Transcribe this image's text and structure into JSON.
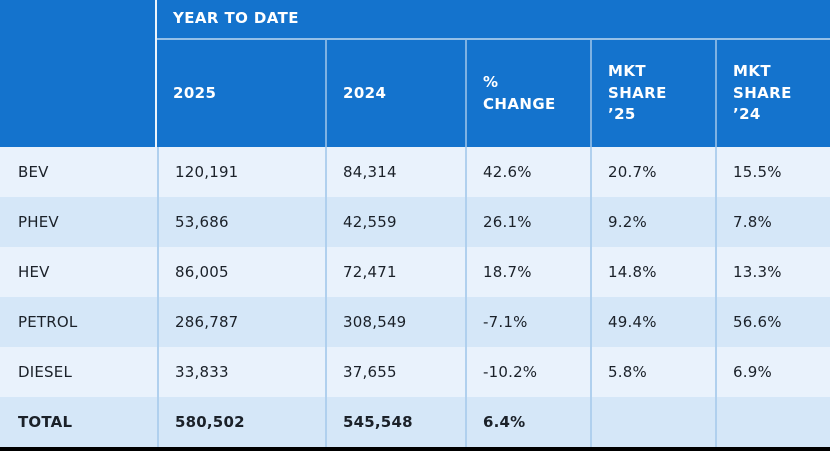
{
  "table": {
    "group_header": "YEAR TO DATE",
    "columns": {
      "label": "",
      "y2025": "2025",
      "y2024": "2024",
      "change": "% CHANGE",
      "share25": "MKT SHARE ’25",
      "share24": "MKT SHARE ’24"
    },
    "rows": [
      {
        "label": "BEV",
        "y2025": "120,191",
        "y2024": "84,314",
        "change": "42.6%",
        "share25": "20.7%",
        "share24": "15.5%"
      },
      {
        "label": "PHEV",
        "y2025": "53,686",
        "y2024": "42,559",
        "change": "26.1%",
        "share25": "9.2%",
        "share24": "7.8%"
      },
      {
        "label": "HEV",
        "y2025": "86,005",
        "y2024": "72,471",
        "change": "18.7%",
        "share25": "14.8%",
        "share24": "13.3%"
      },
      {
        "label": "PETROL",
        "y2025": "286,787",
        "y2024": "308,549",
        "change": "-7.1%",
        "share25": "49.4%",
        "share24": "56.6%"
      },
      {
        "label": "DIESEL",
        "y2025": "33,833",
        "y2024": "37,655",
        "change": "-10.2%",
        "share25": "5.8%",
        "share24": "6.9%"
      },
      {
        "label": "TOTAL",
        "y2025": "580,502",
        "y2024": "545,548",
        "change": "6.4%",
        "share25": "",
        "share24": ""
      }
    ]
  },
  "colors": {
    "header_blue": "#1473cd",
    "row_light": "#e9f2fc",
    "row_shaded": "#d5e7f8",
    "body_divider": "#b0d0ee",
    "text_dark": "#1b2129",
    "header_text": "#ffffff",
    "bottom_bar": "#000000"
  }
}
